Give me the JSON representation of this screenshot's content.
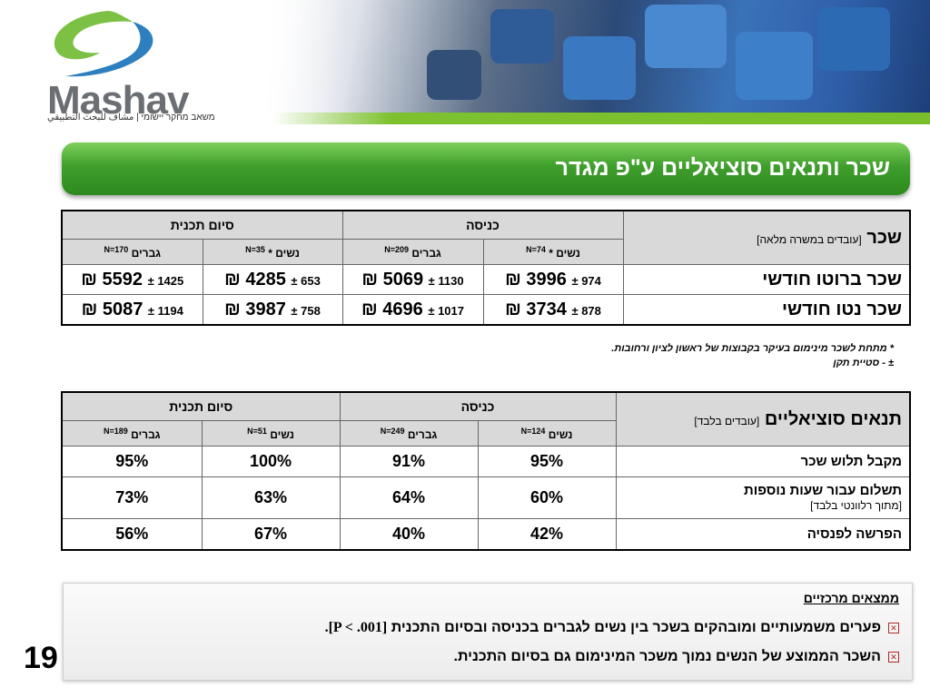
{
  "logo": {
    "name": "Mashav",
    "tagline": "משאב מחקר יישומי | مشاف للبحث التطبيقي"
  },
  "title": "שכר ותנאים סוציאליים ע\"פ מגדר",
  "table1": {
    "corner_main": "שכר",
    "corner_note": "[עובדים במשרה מלאה]",
    "groups": [
      "כניסה",
      "סיום תכנית"
    ],
    "subheaders": [
      {
        "label": "נשים *",
        "n": "N=74"
      },
      {
        "label": "גברים",
        "n": "N=209"
      },
      {
        "label": "נשים *",
        "n": "N=35"
      },
      {
        "label": "גברים",
        "n": "N=170"
      }
    ],
    "rows": [
      {
        "label": "שכר ברוטו חודשי",
        "cells": [
          {
            "mean": "3996 ₪",
            "sd": "974 ±"
          },
          {
            "mean": "5069 ₪",
            "sd": "1130 ±"
          },
          {
            "mean": "4285 ₪",
            "sd": "653 ±"
          },
          {
            "mean": "5592 ₪",
            "sd": "1425 ±"
          }
        ]
      },
      {
        "label": "שכר נטו חודשי",
        "cells": [
          {
            "mean": "3734 ₪",
            "sd": "878 ±"
          },
          {
            "mean": "4696 ₪",
            "sd": "1017 ±"
          },
          {
            "mean": "3987 ₪",
            "sd": "758 ±"
          },
          {
            "mean": "5087 ₪",
            "sd": "1194 ±"
          }
        ]
      }
    ]
  },
  "notes": [
    "* מתחת לשכר מינימום בעיקר בקבוצות של ראשון לציון ורחובות.",
    "± - סטיית תקן"
  ],
  "table2": {
    "corner_main": "תנאים סוציאליים",
    "corner_note": "[עובדים בלבד]",
    "groups": [
      "כניסה",
      "סיום תכנית"
    ],
    "subheaders": [
      {
        "label": "נשים",
        "n": "N=124"
      },
      {
        "label": "גברים",
        "n": "N=249"
      },
      {
        "label": "נשים",
        "n": "N=51"
      },
      {
        "label": "גברים",
        "n": "N=189"
      }
    ],
    "rows": [
      {
        "label": "מקבל תלוש שכר",
        "note": "",
        "cells": [
          "95%",
          "91%",
          "100%",
          "95%"
        ]
      },
      {
        "label": "תשלום עבור שעות נוספות",
        "note": "[מתוך רלוונטי בלבד]",
        "cells": [
          "60%",
          "64%",
          "63%",
          "73%"
        ]
      },
      {
        "label": "הפרשה לפנסיה",
        "note": "",
        "cells": [
          "42%",
          "40%",
          "67%",
          "56%"
        ]
      }
    ]
  },
  "findings": {
    "title": "ממצאים מרכזיים",
    "bullet1_text": "פערים משמעותיים ומובהקים בשכר בין נשים לגברים בכניסה ובסיום התכנית",
    "bullet1_stat": "[P < .001].",
    "bullet2_text": "השכר הממוצע של הנשים נמוך משכר המינימום גם בסיום התכנית."
  },
  "page_number": "19",
  "colors": {
    "title_green": "#3f9e2c",
    "stripe_green": "#7dc12f",
    "header_gray": "#d9d9d9",
    "bullet_red": "#b02a2a"
  }
}
